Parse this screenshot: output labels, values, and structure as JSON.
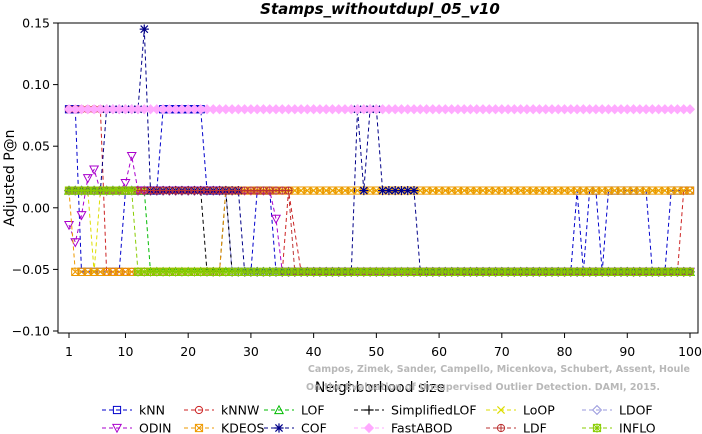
{
  "chart_data": {
    "type": "line",
    "title": "Stamps_withoutdupl_05_v10",
    "xlabel": "Neighborhood size",
    "ylabel": "Adjusted P@n",
    "xlim": [
      1,
      100
    ],
    "ylim": [
      -0.1,
      0.15
    ],
    "xticks": [
      1,
      10,
      20,
      30,
      40,
      50,
      60,
      70,
      80,
      90,
      100
    ],
    "yticks": [
      -0.1,
      -0.05,
      0.0,
      0.05,
      0.1,
      0.15
    ],
    "ytick_labels": [
      "−0.10",
      "−0.05",
      "0.00",
      "0.05",
      "0.10",
      "0.15"
    ],
    "grid": false,
    "legend_position": "bottom",
    "credit_lines": [
      "Campos, Zimek, Sander, Campello, Micenkova, Schubert, Assent, Houle",
      "On the Evaluation of Unsupervised Outlier Detection. DAMI, 2015."
    ],
    "series": [
      {
        "name": "kNN",
        "color": "#0000cc",
        "marker": "square",
        "segments": [
          [
            1,
            0.08
          ],
          [
            2,
            0.08
          ],
          [
            3,
            -0.052
          ],
          [
            9,
            -0.052
          ],
          [
            10,
            0.014
          ],
          [
            15,
            0.014
          ],
          [
            16,
            0.08
          ],
          [
            22,
            0.08
          ],
          [
            23,
            0.014
          ],
          [
            26,
            0.014
          ],
          [
            27,
            -0.052
          ],
          [
            30,
            -0.052
          ],
          [
            31,
            0.014
          ],
          [
            33,
            0.014
          ],
          [
            34,
            -0.052
          ],
          [
            81,
            -0.052
          ],
          [
            82,
            0.014
          ],
          [
            83,
            -0.052
          ],
          [
            84,
            0.014
          ],
          [
            85,
            0.014
          ],
          [
            86,
            -0.052
          ],
          [
            87,
            0.014
          ],
          [
            93,
            0.014
          ],
          [
            94,
            -0.052
          ],
          [
            96,
            -0.052
          ],
          [
            97,
            0.014
          ],
          [
            100,
            0.014
          ]
        ]
      },
      {
        "name": "kNNW",
        "color": "#cc2222",
        "marker": "circle",
        "segments": [
          [
            1,
            0.08
          ],
          [
            6,
            0.08
          ],
          [
            7,
            -0.052
          ],
          [
            19,
            -0.052
          ],
          [
            20,
            -0.052
          ],
          [
            24,
            -0.052
          ],
          [
            25,
            -0.052
          ],
          [
            35,
            -0.052
          ],
          [
            36,
            0.014
          ],
          [
            38,
            -0.052
          ],
          [
            98,
            -0.052
          ],
          [
            99,
            0.014
          ],
          [
            100,
            0.014
          ]
        ]
      },
      {
        "name": "LOF",
        "color": "#00bb00",
        "marker": "triangle-up",
        "segments": [
          [
            1,
            0.014
          ],
          [
            13,
            0.014
          ],
          [
            14,
            -0.052
          ],
          [
            100,
            -0.052
          ]
        ]
      },
      {
        "name": "SimplifiedLOF",
        "color": "#000000",
        "marker": "plus",
        "segments": [
          [
            1,
            0.014
          ],
          [
            22,
            0.014
          ],
          [
            23,
            -0.052
          ],
          [
            25,
            -0.052
          ],
          [
            26,
            0.014
          ],
          [
            27,
            -0.052
          ],
          [
            100,
            -0.052
          ]
        ]
      },
      {
        "name": "LoOP",
        "color": "#dddd00",
        "marker": "x",
        "segments": [
          [
            1,
            0.014
          ],
          [
            4,
            0.014
          ],
          [
            5,
            -0.052
          ],
          [
            6,
            0.014
          ],
          [
            100,
            0.014
          ]
        ]
      },
      {
        "name": "LDOF",
        "color": "#9999dd",
        "marker": "diamond",
        "segments": [
          [
            1,
            0.014
          ],
          [
            26,
            0.014
          ],
          [
            27,
            -0.052
          ],
          [
            100,
            -0.052
          ]
        ]
      },
      {
        "name": "ODIN",
        "color": "#aa00cc",
        "marker": "triangle-down",
        "segments": [
          [
            1,
            -0.014
          ],
          [
            2,
            -0.028
          ],
          [
            3,
            -0.006
          ],
          [
            4,
            0.024
          ],
          [
            5,
            0.031
          ],
          [
            6,
            0.014
          ],
          [
            9,
            0.014
          ],
          [
            10,
            0.02
          ],
          [
            11,
            0.042
          ],
          [
            12,
            0.014
          ],
          [
            31,
            0.014
          ],
          [
            32,
            0.014
          ],
          [
            33,
            0.014
          ],
          [
            34,
            -0.009
          ],
          [
            35,
            -0.052
          ],
          [
            100,
            -0.052
          ]
        ]
      },
      {
        "name": "KDEOS",
        "color": "#ee9900",
        "marker": "square-cross",
        "segments": [
          [
            1,
            0.014
          ],
          [
            2,
            -0.052
          ],
          [
            8,
            -0.052
          ],
          [
            9,
            -0.052
          ],
          [
            25,
            -0.052
          ],
          [
            26,
            0.014
          ],
          [
            100,
            0.014
          ]
        ]
      },
      {
        "name": "COF",
        "color": "#000088",
        "marker": "asterisk",
        "segments": [
          [
            1,
            0.014
          ],
          [
            6,
            0.014
          ],
          [
            7,
            0.08
          ],
          [
            12,
            0.08
          ],
          [
            13,
            0.145
          ],
          [
            14,
            0.014
          ],
          [
            28,
            0.014
          ],
          [
            29,
            -0.052
          ],
          [
            45,
            -0.052
          ],
          [
            46,
            -0.052
          ],
          [
            47,
            0.08
          ],
          [
            48,
            0.014
          ],
          [
            49,
            0.08
          ],
          [
            50,
            0.08
          ],
          [
            51,
            0.014
          ],
          [
            56,
            0.014
          ],
          [
            57,
            -0.052
          ],
          [
            100,
            -0.052
          ]
        ]
      },
      {
        "name": "FastABOD",
        "color": "#ffaaff",
        "marker": "diamond-filled",
        "segments": [
          [
            1,
            0.08
          ],
          [
            100,
            0.08
          ]
        ]
      },
      {
        "name": "LDF",
        "color": "#bb3333",
        "marker": "circle-cross",
        "segments": [
          [
            1,
            0.014
          ],
          [
            36,
            0.014
          ],
          [
            37,
            -0.052
          ],
          [
            100,
            -0.052
          ]
        ]
      },
      {
        "name": "INFLO",
        "color": "#88cc00",
        "marker": "star",
        "segments": [
          [
            1,
            0.014
          ],
          [
            11,
            0.014
          ],
          [
            12,
            -0.052
          ],
          [
            100,
            -0.052
          ]
        ]
      }
    ]
  }
}
